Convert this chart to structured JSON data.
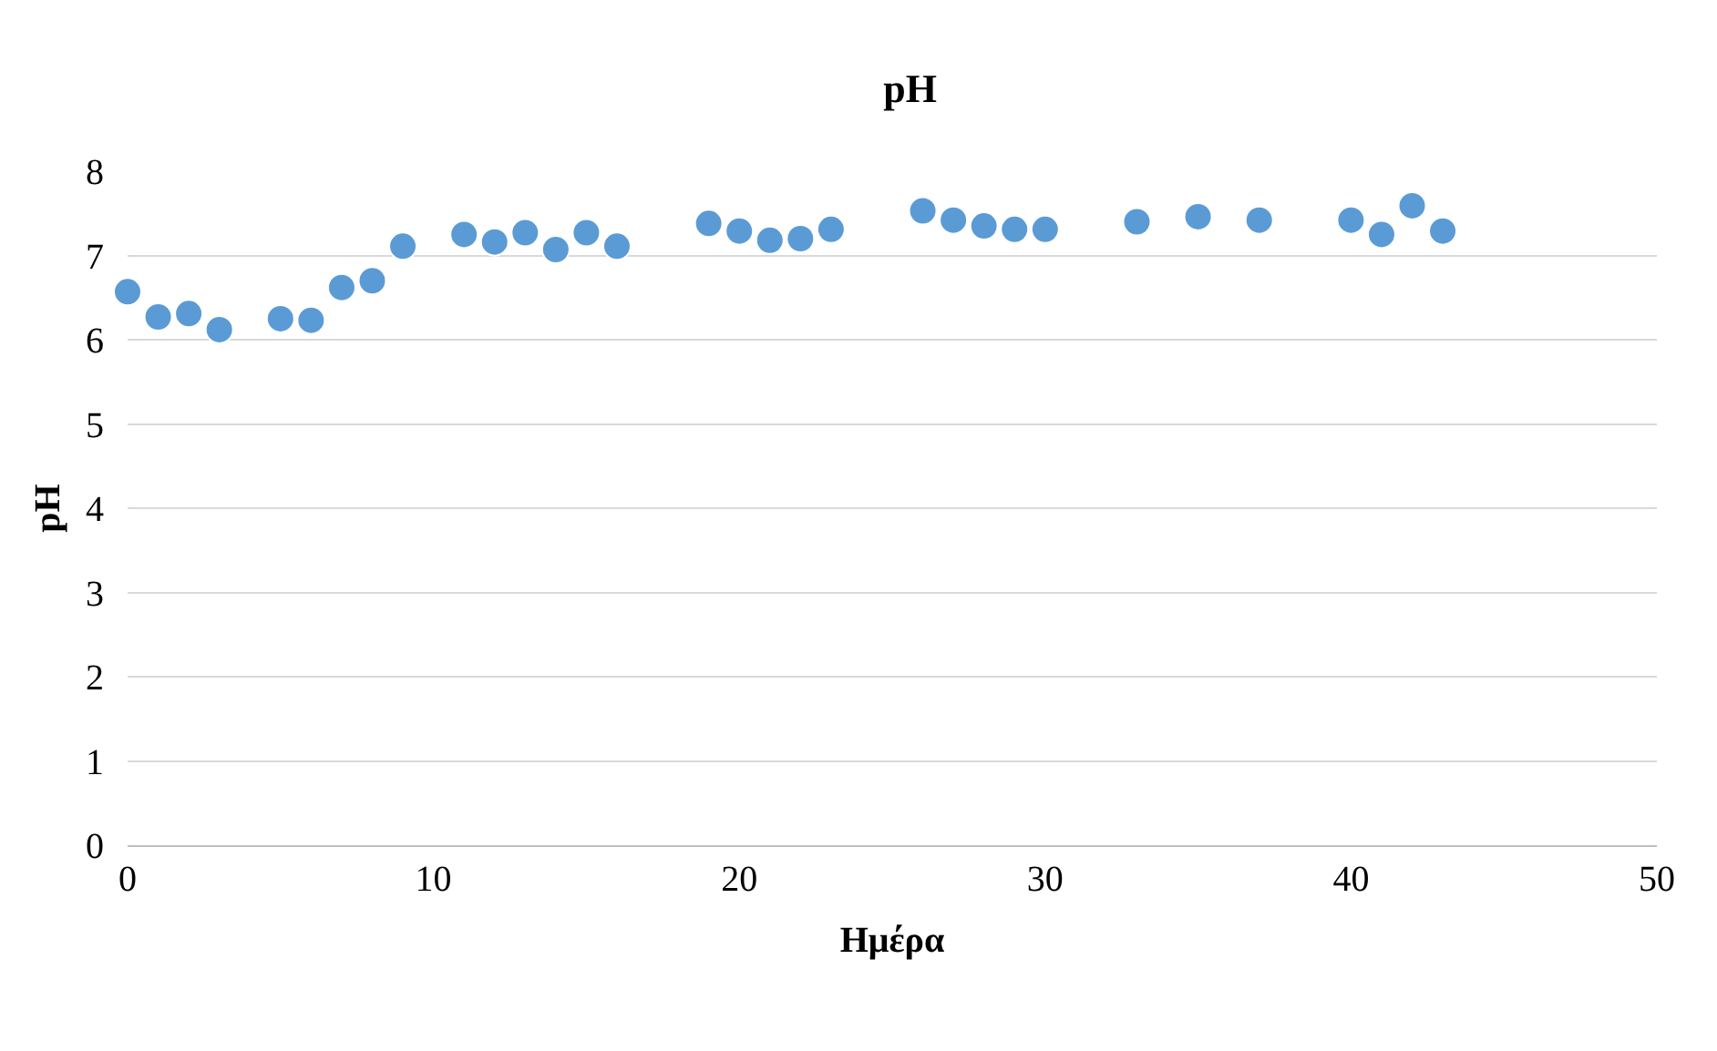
{
  "chart_data": {
    "type": "scatter",
    "title": "pH",
    "xlabel": "Ημέρα",
    "ylabel": "pH",
    "x": [
      0,
      1,
      2,
      3,
      5,
      6,
      7,
      8,
      9,
      11,
      12,
      13,
      14,
      15,
      16,
      19,
      20,
      21,
      22,
      23,
      26,
      27,
      28,
      29,
      30,
      33,
      35,
      37,
      40,
      41,
      42,
      43
    ],
    "series": [
      {
        "color": "#5b9bd5",
        "values": [
          6.57,
          6.27,
          6.31,
          6.12,
          6.25,
          6.23,
          6.62,
          6.7,
          7.11,
          7.25,
          7.16,
          7.27,
          7.07,
          7.27,
          7.11,
          7.38,
          7.29,
          7.18,
          7.2,
          7.31,
          7.53,
          7.42,
          7.35,
          7.31,
          7.31,
          7.4,
          7.46,
          7.42,
          7.42,
          7.25,
          7.59,
          7.29
        ]
      }
    ],
    "xlim": [
      0,
      50
    ],
    "xticks": [
      0,
      10,
      20,
      30,
      40,
      50
    ],
    "ylim": [
      0,
      8
    ],
    "yticks": [
      0,
      1,
      2,
      3,
      4,
      5,
      6,
      7,
      8
    ],
    "grid": "y",
    "marker": "circle"
  }
}
